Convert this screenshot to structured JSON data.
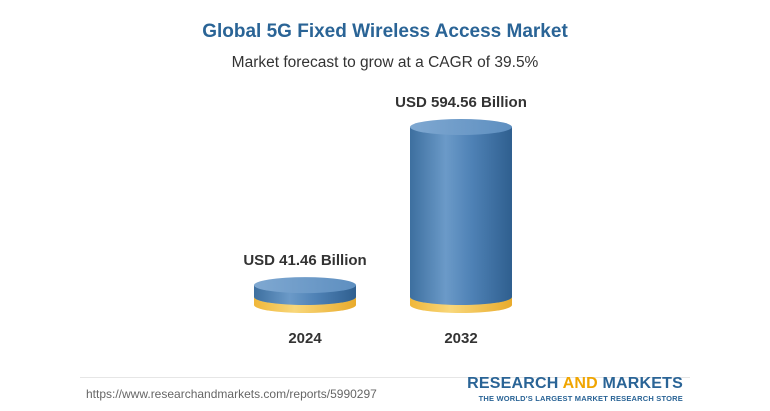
{
  "header": {
    "title": "Global 5G Fixed Wireless Access Market",
    "subtitle": "Market forecast to grow at a CAGR of 39.5%"
  },
  "chart_data": {
    "type": "bar",
    "style": "3d-cylinder",
    "title": "Global 5G Fixed Wireless Access Market",
    "subtitle": "Market forecast to grow at a CAGR of 39.5%",
    "categories": [
      "2024",
      "2032"
    ],
    "values": [
      41.46,
      594.56
    ],
    "unit": "USD Billion",
    "data_labels": [
      "USD 41.46 Billion",
      "USD 594.56 Billion"
    ],
    "cagr": "39.5%",
    "colors": {
      "bar_body": "#4a7fb5",
      "base_disc": "#f5c64f"
    },
    "grid": false,
    "legend": "none"
  },
  "footer": {
    "source": "https://www.researchandmarkets.com/reports/5990297",
    "logo_word1": "RESEARCH",
    "logo_word2": "AND",
    "logo_word3": "MARKETS",
    "logo_tagline": "THE WORLD'S LARGEST MARKET RESEARCH STORE"
  },
  "colors": {
    "title": "#2a6496",
    "accent": "#f0a500"
  }
}
